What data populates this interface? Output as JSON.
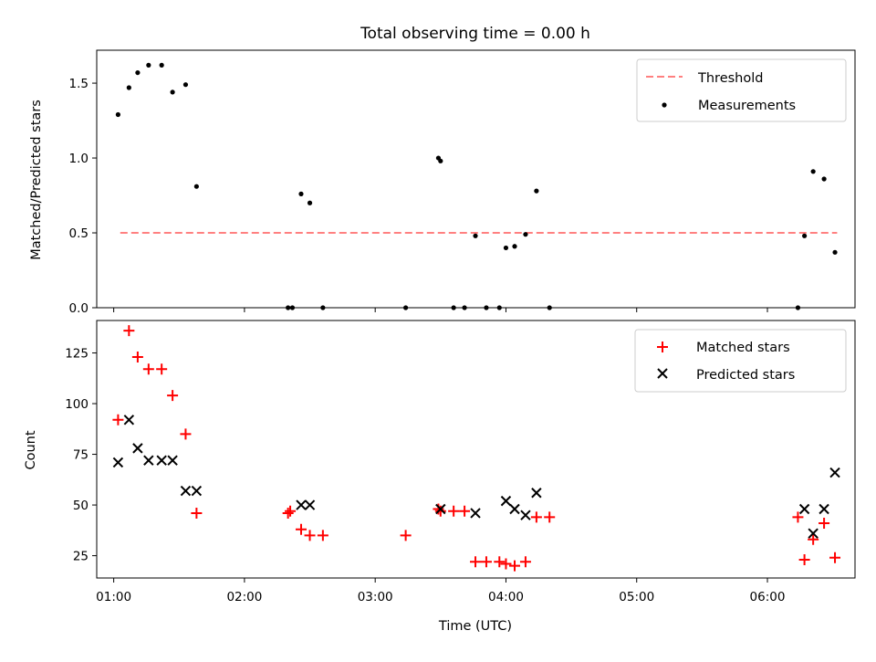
{
  "colors": {
    "threshold": "#ff8080",
    "measure": "#000000",
    "matched": "#ff0000",
    "predicted": "#000000"
  },
  "chart_data": [
    {
      "type": "scatter",
      "title": "Total observing time = 0.00 h",
      "ylabel": "Matched/Predicted stars",
      "xlim_hours": [
        0.87,
        6.67
      ],
      "ylim": [
        0,
        1.72
      ],
      "yticks": [
        {
          "v": 0,
          "label": "0.0"
        },
        {
          "v": 0.5,
          "label": "0.5"
        },
        {
          "v": 1,
          "label": "1.0"
        },
        {
          "v": 1.5,
          "label": "1.5"
        }
      ],
      "legend": {
        "position": "top-right",
        "threshold_label": "Threshold",
        "measure_label": "Measurements"
      },
      "threshold": {
        "y": 0.5,
        "x_start": "01:03",
        "x_end": "06:32"
      },
      "series": [
        {
          "name": "Measurements",
          "x": [
            "01:02",
            "01:07",
            "01:11",
            "01:16",
            "01:22",
            "01:27",
            "01:33",
            "01:38",
            "02:20",
            "02:22",
            "02:26",
            "02:30",
            "02:36",
            "03:14",
            "03:29",
            "03:30",
            "03:36",
            "03:41",
            "03:46",
            "03:51",
            "03:57",
            "04:00",
            "04:04",
            "04:09",
            "04:14",
            "06:14",
            "06:17",
            "06:21",
            "06:26",
            "06:31",
            "04:20"
          ],
          "y": [
            1.29,
            1.47,
            1.57,
            1.62,
            1.62,
            1.44,
            1.49,
            0.81,
            0.0,
            0.0,
            0.76,
            0.7,
            0.0,
            0.0,
            1.0,
            0.98,
            0.0,
            0.0,
            0.48,
            0.0,
            0.0,
            0.4,
            0.41,
            0.49,
            0.78,
            0.0,
            0.48,
            0.91,
            0.86,
            0.37,
            0.0
          ]
        }
      ]
    },
    {
      "type": "scatter",
      "xlabel": "Time (UTC)",
      "ylabel": "Count",
      "xlim_hours": [
        0.87,
        6.67
      ],
      "ylim": [
        14,
        141
      ],
      "yticks": [
        {
          "v": 25,
          "label": "25"
        },
        {
          "v": 50,
          "label": "50"
        },
        {
          "v": 75,
          "label": "75"
        },
        {
          "v": 100,
          "label": "100"
        },
        {
          "v": 125,
          "label": "125"
        }
      ],
      "xticks": [
        {
          "v": "01:00",
          "label": "01:00"
        },
        {
          "v": "02:00",
          "label": "02:00"
        },
        {
          "v": "03:00",
          "label": "03:00"
        },
        {
          "v": "04:00",
          "label": "04:00"
        },
        {
          "v": "05:00",
          "label": "05:00"
        },
        {
          "v": "06:00",
          "label": "06:00"
        }
      ],
      "legend": {
        "position": "top-right",
        "matched_label": "Matched stars",
        "predicted_label": "Predicted stars"
      },
      "series": [
        {
          "name": "Matched stars",
          "x": [
            "01:02",
            "01:07",
            "01:11",
            "01:16",
            "01:22",
            "01:27",
            "01:33",
            "01:38",
            "02:20",
            "02:21",
            "02:26",
            "02:30",
            "02:36",
            "03:14",
            "03:29",
            "03:30",
            "03:36",
            "03:41",
            "03:46",
            "03:51",
            "03:57",
            "04:00",
            "04:04",
            "04:09",
            "04:14",
            "04:20",
            "06:14",
            "06:17",
            "06:21",
            "06:26",
            "06:31"
          ],
          "y": [
            92,
            136,
            123,
            117,
            117,
            104,
            85,
            46,
            46,
            47,
            38,
            35,
            35,
            35,
            48,
            47,
            47,
            47,
            22,
            22,
            22,
            21,
            20,
            22,
            44,
            44,
            44,
            23,
            33,
            41,
            24
          ]
        },
        {
          "name": "Predicted stars",
          "x": [
            "01:02",
            "01:07",
            "01:11",
            "01:16",
            "01:22",
            "01:27",
            "01:33",
            "01:38",
            "02:26",
            "02:30",
            "03:30",
            "03:46",
            "04:00",
            "04:04",
            "04:09",
            "04:14",
            "06:17",
            "06:21",
            "06:26",
            "06:31"
          ],
          "y": [
            71,
            92,
            78,
            72,
            72,
            72,
            57,
            57,
            50,
            50,
            48,
            46,
            52,
            48,
            45,
            56,
            48,
            36,
            48,
            66
          ]
        }
      ]
    }
  ]
}
